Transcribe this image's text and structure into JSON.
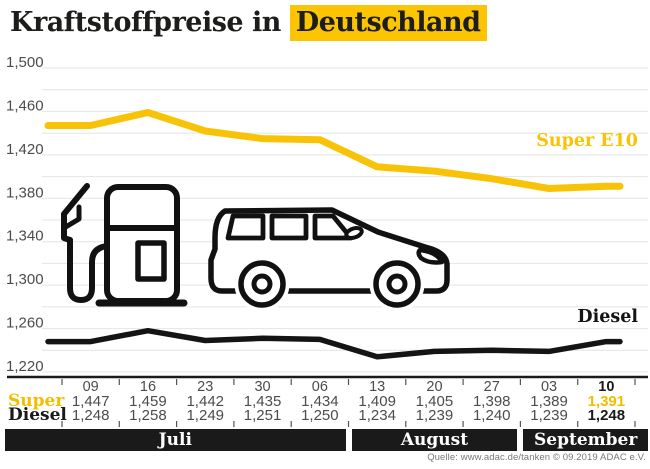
{
  "title": {
    "prefix": "Kraftstoffpreise in",
    "highlight": "Deutschland"
  },
  "chart_data": {
    "type": "line",
    "title": "Kraftstoffpreise in Deutschland",
    "x_tick_labels": [
      "09",
      "16",
      "23",
      "30",
      "06",
      "13",
      "20",
      "27",
      "03",
      "10"
    ],
    "x_groups": [
      {
        "label": "Juli",
        "span": 5
      },
      {
        "label": "August",
        "span": 3
      },
      {
        "label": "September",
        "span": 2
      }
    ],
    "series": [
      {
        "name": "Super E10",
        "color": "#f8c307",
        "values": [
          1447,
          1459,
          1442,
          1435,
          1434,
          1409,
          1405,
          1398,
          1389,
          1391
        ]
      },
      {
        "name": "Diesel",
        "color": "#141414",
        "values": [
          1248,
          1258,
          1249,
          1251,
          1250,
          1234,
          1239,
          1240,
          1239,
          1248
        ]
      }
    ],
    "ylim": [
      1220,
      1500
    ],
    "ytick_minor_step": 20,
    "grid": true,
    "legend_position": "right-inline",
    "y_axis_labels": [
      {
        "value": 1500,
        "label": "1,500"
      },
      {
        "value": 1460,
        "label": "1,460"
      },
      {
        "value": 1420,
        "label": "1,420"
      },
      {
        "value": 1380,
        "label": "1,380"
      },
      {
        "value": 1340,
        "label": "1,340"
      },
      {
        "value": 1300,
        "label": "1,300"
      },
      {
        "value": 1260,
        "label": "1,260"
      },
      {
        "value": 1220,
        "label": "1,220"
      }
    ]
  },
  "table": {
    "dates": [
      "09",
      "16",
      "23",
      "30",
      "06",
      "13",
      "20",
      "27",
      "03",
      "10"
    ],
    "rows": [
      {
        "label": "Super",
        "values": [
          "1,447",
          "1,459",
          "1,442",
          "1,435",
          "1,434",
          "1,409",
          "1,405",
          "1,398",
          "1,389",
          "1,391"
        ]
      },
      {
        "label": "Diesel",
        "values": [
          "1,248",
          "1,258",
          "1,249",
          "1,251",
          "1,250",
          "1,234",
          "1,239",
          "1,240",
          "1,239",
          "1,248"
        ]
      }
    ]
  },
  "months": [
    "Juli",
    "August",
    "September"
  ],
  "source": "Quelle: www.adac.de/tanken   © 09.2019 ADAC e.V.",
  "colors": {
    "accent_yellow": "#f8c307",
    "black": "#1a1a1a",
    "grid": "#e4e4e4",
    "tick_text": "#4c4c4c"
  }
}
